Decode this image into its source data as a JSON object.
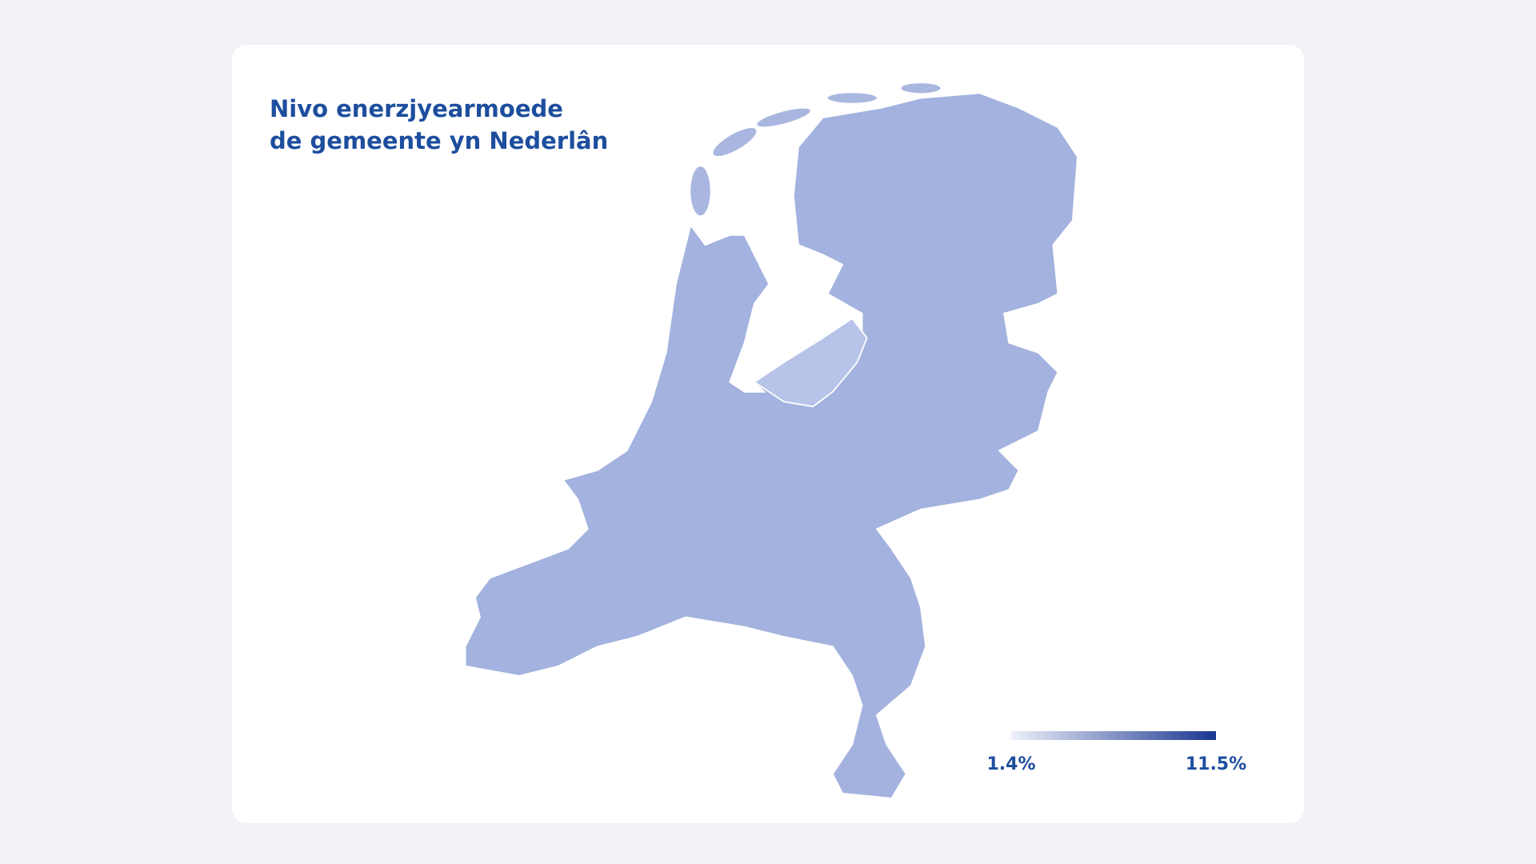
{
  "title": [
    "Nivo enerzjyearmoede",
    "de gemeente yn Nederlân"
  ],
  "legend": {
    "min": {
      "value": 1.4,
      "label": "1.4%"
    },
    "max": {
      "value": 11.5,
      "label": "11.5%"
    },
    "colors": [
      "#eef1fa",
      "#1a3691"
    ]
  }
}
